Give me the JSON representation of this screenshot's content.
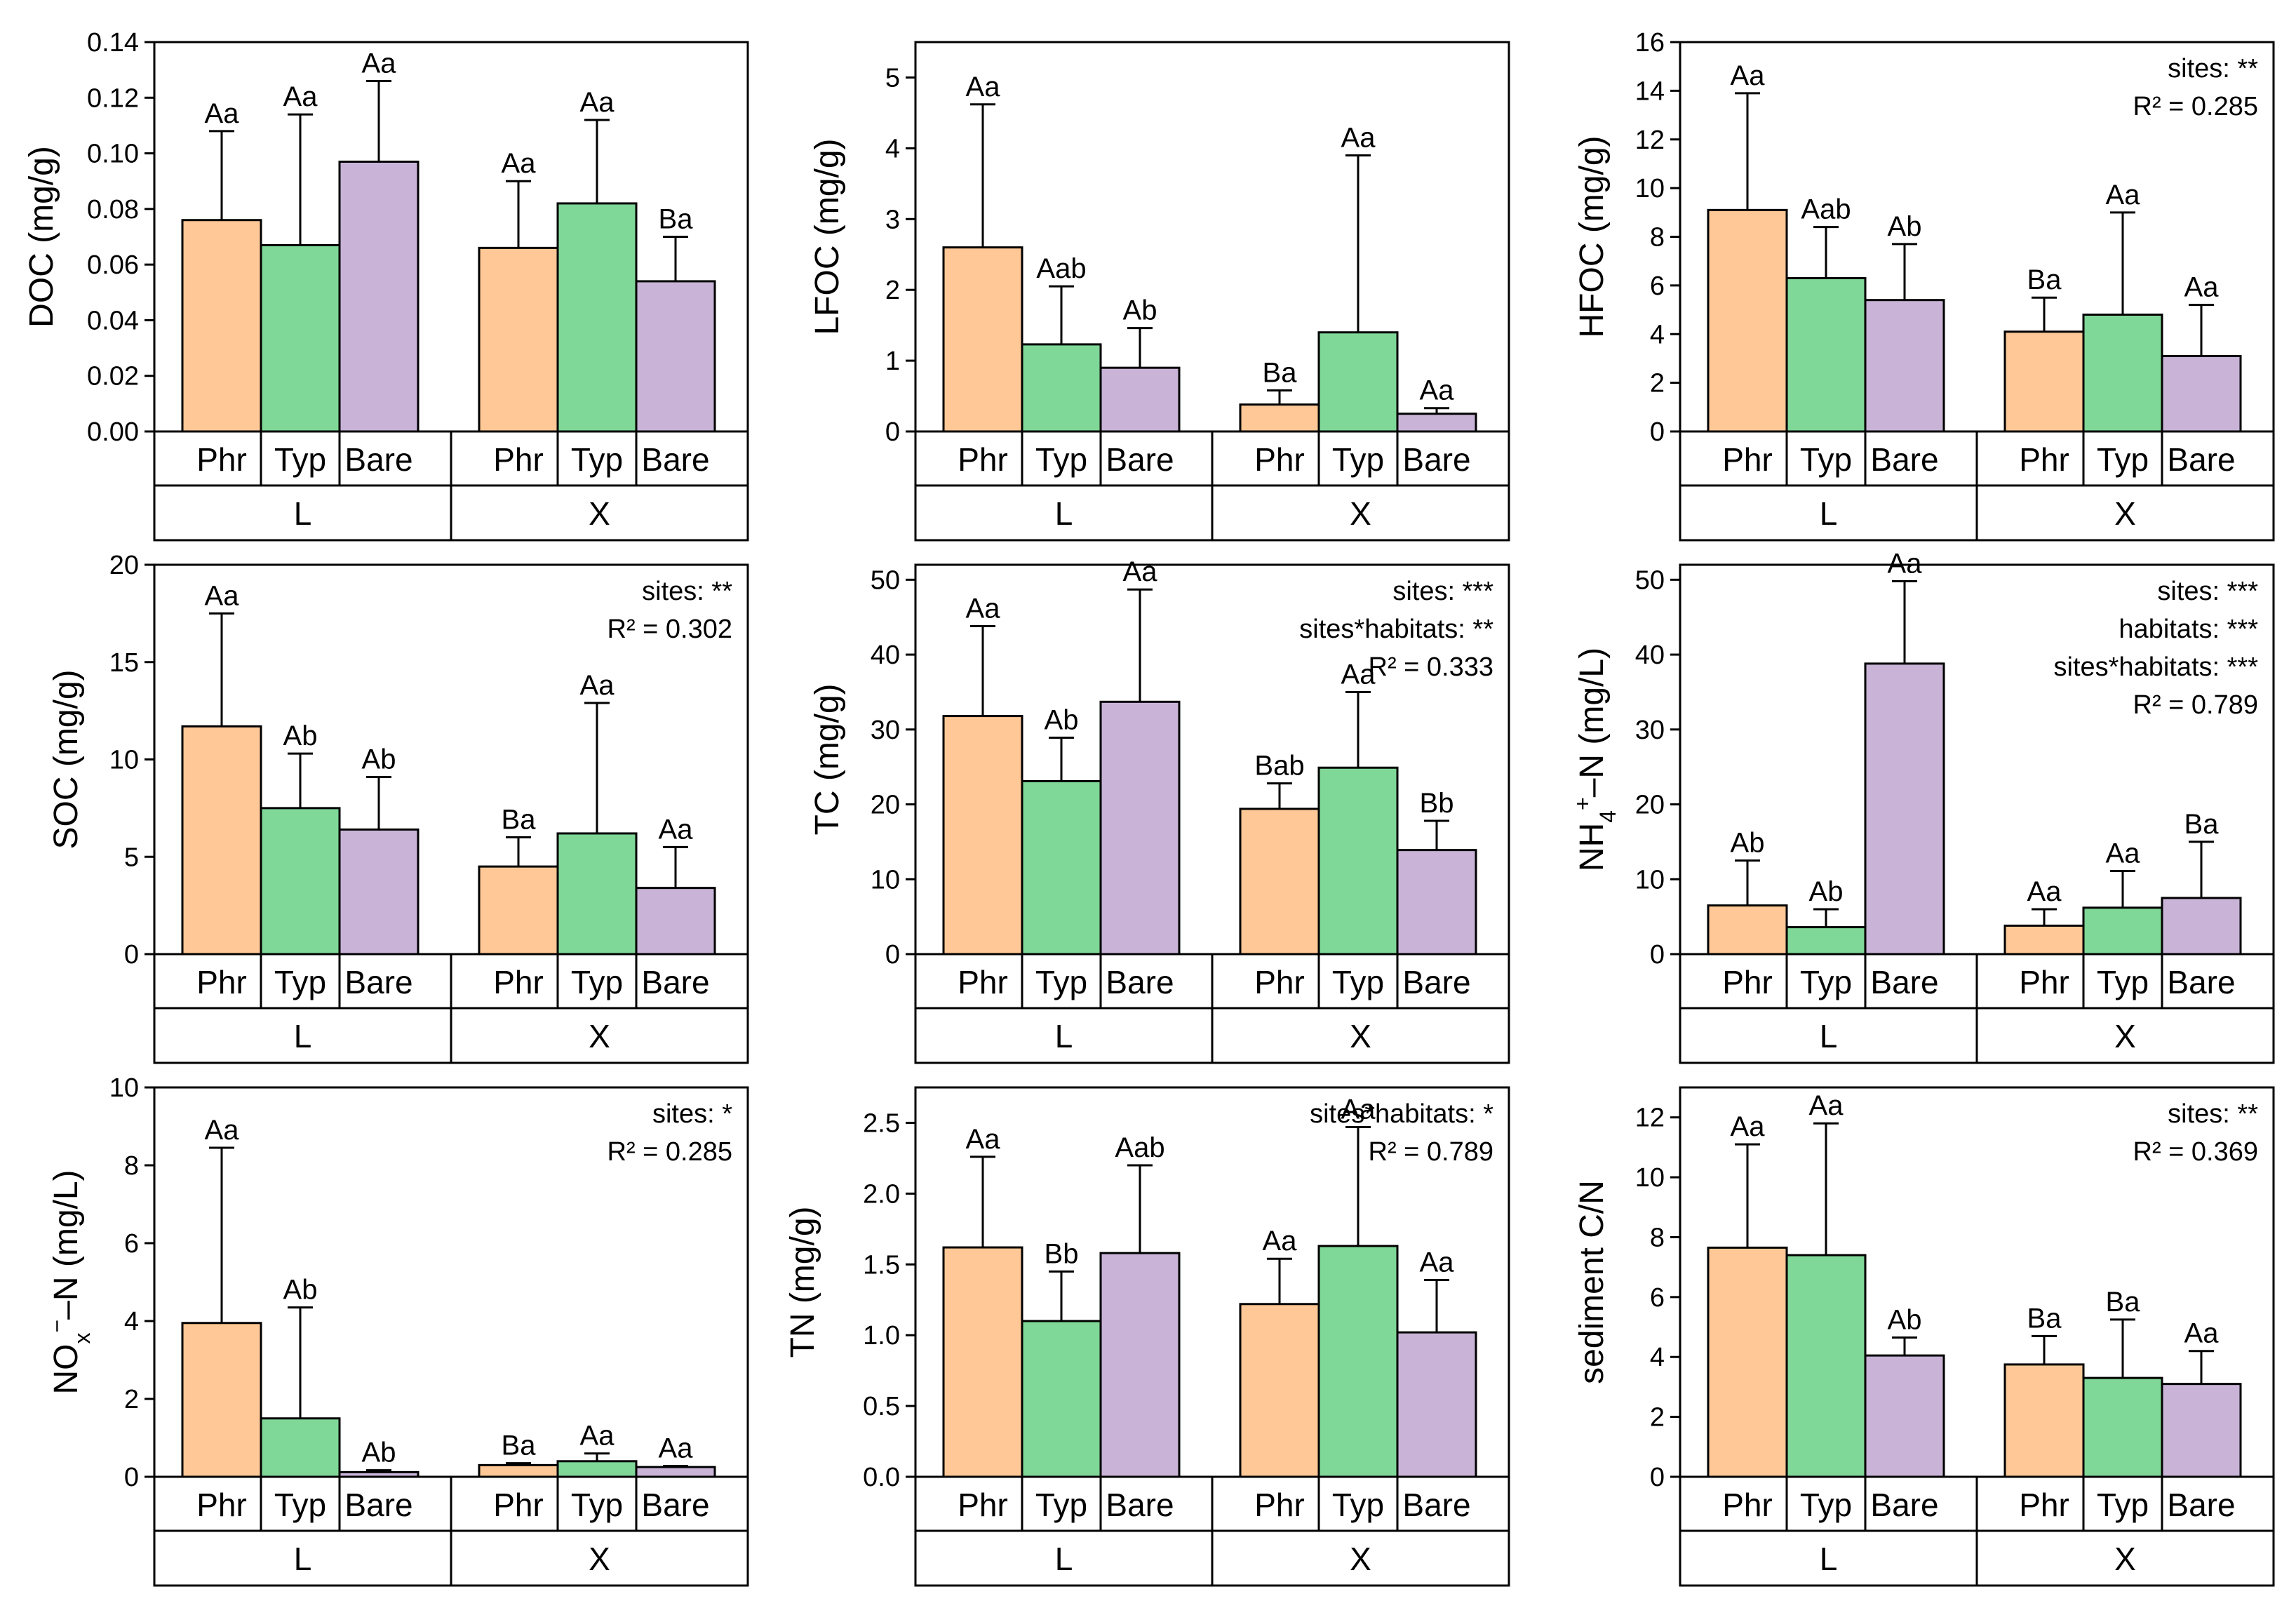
{
  "colors": {
    "Phr": "#FFC896",
    "Typ": "#80D898",
    "Bare": "#C9B4D8",
    "axis": "#000000"
  },
  "chart_data": [
    {
      "type": "bar",
      "ylabel": "DOC (mg/g)",
      "ylim": [
        0,
        0.14
      ],
      "yticks": [
        "0.00",
        "0.02",
        "0.04",
        "0.06",
        "0.08",
        "0.10",
        "0.12",
        "0.14"
      ],
      "sites": [
        "L",
        "X"
      ],
      "categories": [
        "Phr",
        "Typ",
        "Bare"
      ],
      "series": [
        {
          "site": "L",
          "name": "Phr",
          "value": 0.076,
          "error": 0.032,
          "letters": "Aa"
        },
        {
          "site": "L",
          "name": "Typ",
          "value": 0.067,
          "error": 0.047,
          "letters": "Aa"
        },
        {
          "site": "L",
          "name": "Bare",
          "value": 0.097,
          "error": 0.029,
          "letters": "Aa"
        },
        {
          "site": "X",
          "name": "Phr",
          "value": 0.066,
          "error": 0.024,
          "letters": "Aa"
        },
        {
          "site": "X",
          "name": "Typ",
          "value": 0.082,
          "error": 0.03,
          "letters": "Aa"
        },
        {
          "site": "X",
          "name": "Bare",
          "value": 0.054,
          "error": 0.016,
          "letters": "Ba"
        }
      ],
      "stats": []
    },
    {
      "type": "bar",
      "ylabel": "LFOC (mg/g)",
      "ylim": [
        0,
        5.5
      ],
      "yticks": [
        "0",
        "1",
        "2",
        "3",
        "4",
        "5"
      ],
      "sites": [
        "L",
        "X"
      ],
      "categories": [
        "Phr",
        "Typ",
        "Bare"
      ],
      "series": [
        {
          "site": "L",
          "name": "Phr",
          "value": 2.6,
          "error": 2.02,
          "letters": "Aa"
        },
        {
          "site": "L",
          "name": "Typ",
          "value": 1.23,
          "error": 0.82,
          "letters": "Aab"
        },
        {
          "site": "L",
          "name": "Bare",
          "value": 0.9,
          "error": 0.56,
          "letters": "Ab"
        },
        {
          "site": "X",
          "name": "Phr",
          "value": 0.38,
          "error": 0.2,
          "letters": "Ba"
        },
        {
          "site": "X",
          "name": "Typ",
          "value": 1.4,
          "error": 2.5,
          "letters": "Aa"
        },
        {
          "site": "X",
          "name": "Bare",
          "value": 0.25,
          "error": 0.08,
          "letters": "Aa"
        }
      ],
      "stats": []
    },
    {
      "type": "bar",
      "ylabel": "HFOC (mg/g)",
      "ylim": [
        0,
        16
      ],
      "yticks": [
        "0",
        "2",
        "4",
        "6",
        "8",
        "10",
        "12",
        "14",
        "16"
      ],
      "sites": [
        "L",
        "X"
      ],
      "categories": [
        "Phr",
        "Typ",
        "Bare"
      ],
      "series": [
        {
          "site": "L",
          "name": "Phr",
          "value": 9.1,
          "error": 4.8,
          "letters": "Aa"
        },
        {
          "site": "L",
          "name": "Typ",
          "value": 6.3,
          "error": 2.1,
          "letters": "Aab"
        },
        {
          "site": "L",
          "name": "Bare",
          "value": 5.4,
          "error": 2.3,
          "letters": "Ab"
        },
        {
          "site": "X",
          "name": "Phr",
          "value": 4.1,
          "error": 1.4,
          "letters": "Ba"
        },
        {
          "site": "X",
          "name": "Typ",
          "value": 4.8,
          "error": 4.2,
          "letters": "Aa"
        },
        {
          "site": "X",
          "name": "Bare",
          "value": 3.1,
          "error": 2.1,
          "letters": "Aa"
        }
      ],
      "stats": [
        "sites: **",
        "R² = 0.285"
      ]
    },
    {
      "type": "bar",
      "ylabel": "SOC (mg/g)",
      "ylim": [
        0,
        20
      ],
      "yticks": [
        "0",
        "5",
        "10",
        "15",
        "20"
      ],
      "sites": [
        "L",
        "X"
      ],
      "categories": [
        "Phr",
        "Typ",
        "Bare"
      ],
      "series": [
        {
          "site": "L",
          "name": "Phr",
          "value": 11.7,
          "error": 5.8,
          "letters": "Aa"
        },
        {
          "site": "L",
          "name": "Typ",
          "value": 7.5,
          "error": 2.8,
          "letters": "Ab"
        },
        {
          "site": "L",
          "name": "Bare",
          "value": 6.4,
          "error": 2.7,
          "letters": "Ab"
        },
        {
          "site": "X",
          "name": "Phr",
          "value": 4.5,
          "error": 1.5,
          "letters": "Ba"
        },
        {
          "site": "X",
          "name": "Typ",
          "value": 6.2,
          "error": 6.7,
          "letters": "Aa"
        },
        {
          "site": "X",
          "name": "Bare",
          "value": 3.4,
          "error": 2.1,
          "letters": "Aa"
        }
      ],
      "stats": [
        "sites: **",
        "R² = 0.302"
      ]
    },
    {
      "type": "bar",
      "ylabel": "TC (mg/g)",
      "ylim": [
        0,
        52
      ],
      "yticks": [
        "0",
        "10",
        "20",
        "30",
        "40",
        "50"
      ],
      "sites": [
        "L",
        "X"
      ],
      "categories": [
        "Phr",
        "Typ",
        "Bare"
      ],
      "series": [
        {
          "site": "L",
          "name": "Phr",
          "value": 31.8,
          "error": 12.0,
          "letters": "Aa"
        },
        {
          "site": "L",
          "name": "Typ",
          "value": 23.1,
          "error": 5.8,
          "letters": "Ab"
        },
        {
          "site": "L",
          "name": "Bare",
          "value": 33.7,
          "error": 15.0,
          "letters": "Aa"
        },
        {
          "site": "X",
          "name": "Phr",
          "value": 19.4,
          "error": 3.4,
          "letters": "Bab"
        },
        {
          "site": "X",
          "name": "Typ",
          "value": 24.9,
          "error": 10.1,
          "letters": "Aa"
        },
        {
          "site": "X",
          "name": "Bare",
          "value": 13.9,
          "error": 3.9,
          "letters": "Bb"
        }
      ],
      "stats": [
        "sites: ***",
        "sites*habitats: **",
        "R² = 0.333"
      ]
    },
    {
      "type": "bar",
      "ylabel": "NH4+–N (mg/L)",
      "ylim": [
        0,
        52
      ],
      "yticks": [
        "0",
        "10",
        "20",
        "30",
        "40",
        "50"
      ],
      "sites": [
        "L",
        "X"
      ],
      "categories": [
        "Phr",
        "Typ",
        "Bare"
      ],
      "series": [
        {
          "site": "L",
          "name": "Phr",
          "value": 6.5,
          "error": 6.0,
          "letters": "Ab"
        },
        {
          "site": "L",
          "name": "Typ",
          "value": 3.6,
          "error": 2.4,
          "letters": "Ab"
        },
        {
          "site": "L",
          "name": "Bare",
          "value": 38.8,
          "error": 11.0,
          "letters": "Aa"
        },
        {
          "site": "X",
          "name": "Phr",
          "value": 3.8,
          "error": 2.2,
          "letters": "Aa"
        },
        {
          "site": "X",
          "name": "Typ",
          "value": 6.2,
          "error": 4.9,
          "letters": "Aa"
        },
        {
          "site": "X",
          "name": "Bare",
          "value": 7.5,
          "error": 7.5,
          "letters": "Ba"
        }
      ],
      "stats": [
        "sites: ***",
        "habitats: ***",
        "sites*habitats: ***",
        "R² = 0.789"
      ]
    },
    {
      "type": "bar",
      "ylabel": "NOx−–N (mg/L)",
      "ylim": [
        0,
        10
      ],
      "yticks": [
        "0",
        "2",
        "4",
        "6",
        "8",
        "10"
      ],
      "sites": [
        "L",
        "X"
      ],
      "categories": [
        "Phr",
        "Typ",
        "Bare"
      ],
      "series": [
        {
          "site": "L",
          "name": "Phr",
          "value": 3.95,
          "error": 4.5,
          "letters": "Aa"
        },
        {
          "site": "L",
          "name": "Typ",
          "value": 1.5,
          "error": 2.85,
          "letters": "Ab"
        },
        {
          "site": "L",
          "name": "Bare",
          "value": 0.12,
          "error": 0.05,
          "letters": "Ab"
        },
        {
          "site": "X",
          "name": "Phr",
          "value": 0.3,
          "error": 0.05,
          "letters": "Ba"
        },
        {
          "site": "X",
          "name": "Typ",
          "value": 0.4,
          "error": 0.2,
          "letters": "Aa"
        },
        {
          "site": "X",
          "name": "Bare",
          "value": 0.25,
          "error": 0.03,
          "letters": "Aa"
        }
      ],
      "stats": [
        "sites: *",
        "R² = 0.285"
      ]
    },
    {
      "type": "bar",
      "ylabel": "TN (mg/g)",
      "ylim": [
        0,
        2.75
      ],
      "yticks": [
        "0.0",
        "0.5",
        "1.0",
        "1.5",
        "2.0",
        "2.5"
      ],
      "sites": [
        "L",
        "X"
      ],
      "categories": [
        "Phr",
        "Typ",
        "Bare"
      ],
      "series": [
        {
          "site": "L",
          "name": "Phr",
          "value": 1.62,
          "error": 0.64,
          "letters": "Aa"
        },
        {
          "site": "L",
          "name": "Typ",
          "value": 1.1,
          "error": 0.35,
          "letters": "Bb"
        },
        {
          "site": "L",
          "name": "Bare",
          "value": 1.58,
          "error": 0.62,
          "letters": "Aab"
        },
        {
          "site": "X",
          "name": "Phr",
          "value": 1.22,
          "error": 0.32,
          "letters": "Aa"
        },
        {
          "site": "X",
          "name": "Typ",
          "value": 1.63,
          "error": 0.84,
          "letters": "Aa"
        },
        {
          "site": "X",
          "name": "Bare",
          "value": 1.02,
          "error": 0.37,
          "letters": "Aa"
        }
      ],
      "stats": [
        "sites*habitats: *",
        "R² = 0.789"
      ]
    },
    {
      "type": "bar",
      "ylabel": "sediment C/N",
      "ylim": [
        0,
        13
      ],
      "yticks": [
        "0",
        "2",
        "4",
        "6",
        "8",
        "10",
        "12"
      ],
      "sites": [
        "L",
        "X"
      ],
      "categories": [
        "Phr",
        "Typ",
        "Bare"
      ],
      "series": [
        {
          "site": "L",
          "name": "Phr",
          "value": 7.65,
          "error": 3.45,
          "letters": "Aa"
        },
        {
          "site": "L",
          "name": "Typ",
          "value": 7.4,
          "error": 4.4,
          "letters": "Aa"
        },
        {
          "site": "L",
          "name": "Bare",
          "value": 4.05,
          "error": 0.6,
          "letters": "Ab"
        },
        {
          "site": "X",
          "name": "Phr",
          "value": 3.75,
          "error": 0.95,
          "letters": "Ba"
        },
        {
          "site": "X",
          "name": "Typ",
          "value": 3.3,
          "error": 1.95,
          "letters": "Ba"
        },
        {
          "site": "X",
          "name": "Bare",
          "value": 3.1,
          "error": 1.1,
          "letters": "Aa"
        }
      ],
      "stats": [
        "sites: **",
        "R² = 0.369"
      ]
    }
  ]
}
